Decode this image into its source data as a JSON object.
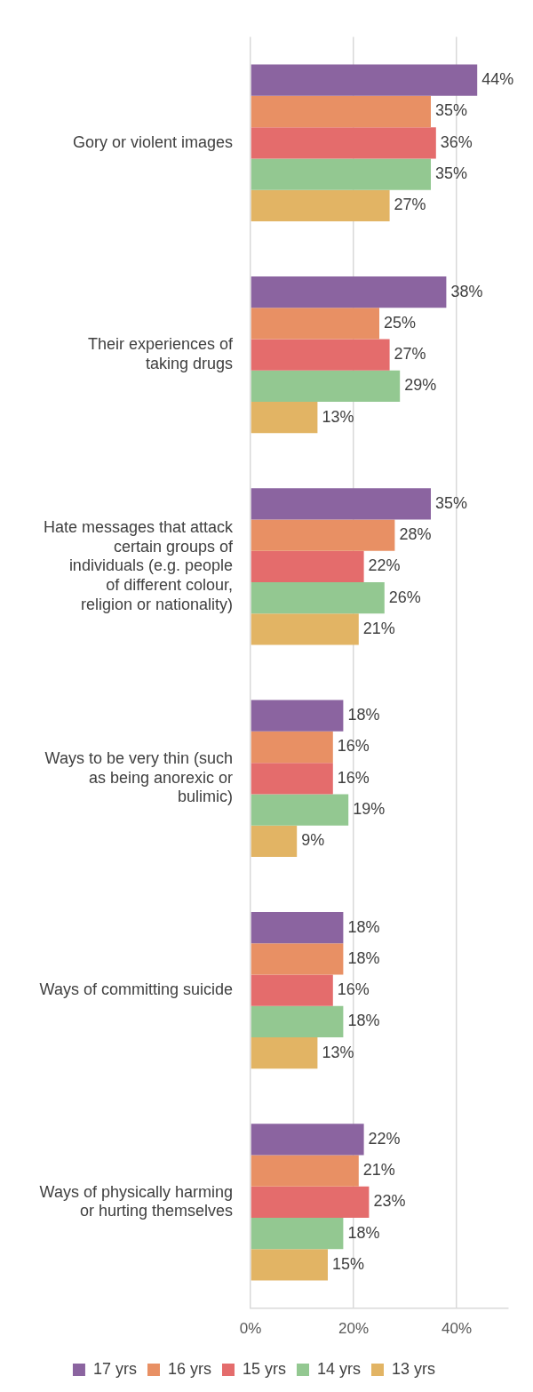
{
  "chart_data": {
    "type": "bar",
    "orientation": "horizontal",
    "categories": [
      "Gory or violent images",
      "Their experiences of taking drugs",
      "Hate messages that attack certain groups of individuals (e.g. people of different colour, religion or nationality)",
      "Ways to be very thin (such as being anorexic or bulimic)",
      "Ways of committing suicide",
      "Ways of physically harming or hurting themselves"
    ],
    "series": [
      {
        "name": "17 yrs",
        "color": "#8b64a0",
        "values": [
          44,
          38,
          35,
          18,
          18,
          22
        ],
        "value_labels": [
          "44%",
          "38%",
          "35%",
          "18%",
          "18%",
          "22%"
        ]
      },
      {
        "name": "16 yrs",
        "color": "#e89064",
        "values": [
          35,
          25,
          28,
          16,
          18,
          21
        ],
        "value_labels": [
          "35%",
          "25%",
          "28%",
          "16%",
          "18%",
          "21%"
        ]
      },
      {
        "name": "15 yrs",
        "color": "#e46c6c",
        "values": [
          36,
          27,
          22,
          16,
          16,
          23
        ],
        "value_labels": [
          "36%",
          "27%",
          "22%",
          "16%",
          "16%",
          "23%"
        ]
      },
      {
        "name": "14 yrs",
        "color": "#93c891",
        "values": [
          35,
          29,
          26,
          19,
          18,
          18
        ],
        "value_labels": [
          "35%",
          "29%",
          "26%",
          "19%",
          "18%",
          "18%"
        ]
      },
      {
        "name": "13 yrs",
        "color": "#e2b464",
        "values": [
          27,
          13,
          21,
          9,
          13,
          15
        ],
        "value_labels": [
          "27%",
          "13%",
          "21%",
          "9%",
          "13%",
          "15%"
        ]
      }
    ],
    "xlim": [
      0,
      50
    ],
    "xticks": [
      {
        "value": 0,
        "label": "0%"
      },
      {
        "value": 20,
        "label": "20%"
      },
      {
        "value": 40,
        "label": "40%"
      }
    ],
    "grid": "x",
    "legend": "bottom"
  }
}
